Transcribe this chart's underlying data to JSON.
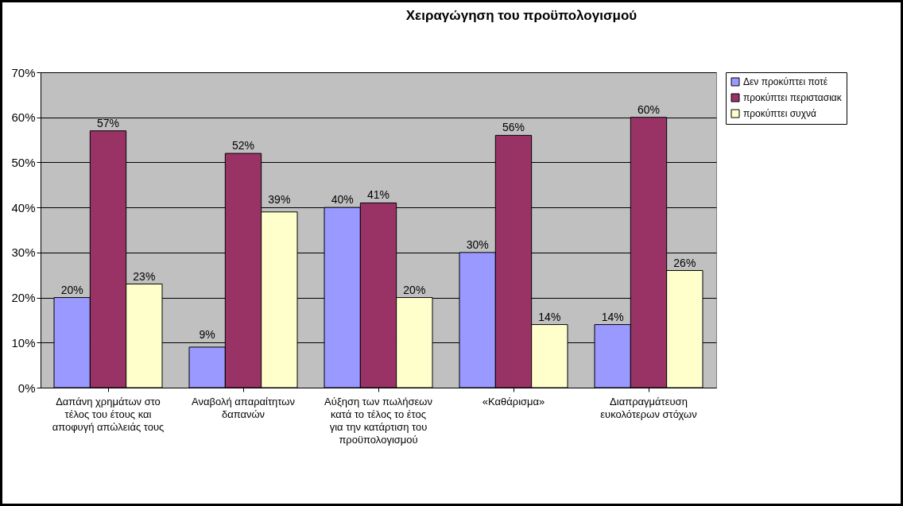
{
  "chart_data": {
    "type": "bar",
    "title": "Χειραγώγηση του προϋπολογισμού",
    "categories": [
      "Δαπάνη χρημάτων στο τέλος του έτους και αποφυγή απώλειάς τους",
      "Αναβολή απαραίτητων δαπανών",
      "Αύξηση των πωλήσεων κατά το τέλος το έτος για την κατάρτιση του προϋπολογισμού",
      "«Καθάρισμα»",
      "Διαπραγμάτευση ευκολότερων στόχων"
    ],
    "series": [
      {
        "name": "Δεν προκύπτει ποτέ",
        "color": "#9999ff",
        "values": [
          20,
          9,
          40,
          30,
          14
        ],
        "value_labels": [
          "20%",
          "9%",
          "40%",
          "30%",
          "14%"
        ]
      },
      {
        "name": "προκύπτει περιστασιακ",
        "color": "#993366",
        "values": [
          57,
          52,
          41,
          56,
          60
        ],
        "value_labels": [
          "57%",
          "52%",
          "41%",
          "56%",
          "60%"
        ]
      },
      {
        "name": "προκύπτει συχνά",
        "color": "#ffffcc",
        "values": [
          23,
          39,
          20,
          14,
          26
        ],
        "value_labels": [
          "23%",
          "39%",
          "20%",
          "14%",
          "26%"
        ]
      }
    ],
    "ylim": [
      0,
      70
    ],
    "yticks": [
      {
        "value": 0,
        "label": "0%"
      },
      {
        "value": 10,
        "label": "10%"
      },
      {
        "value": 20,
        "label": "20%"
      },
      {
        "value": 30,
        "label": "30%"
      },
      {
        "value": 40,
        "label": "40%"
      },
      {
        "value": 50,
        "label": "50%"
      },
      {
        "value": 60,
        "label": "60%"
      },
      {
        "value": 70,
        "label": "70%"
      }
    ],
    "grid": "y",
    "legend": "right"
  }
}
